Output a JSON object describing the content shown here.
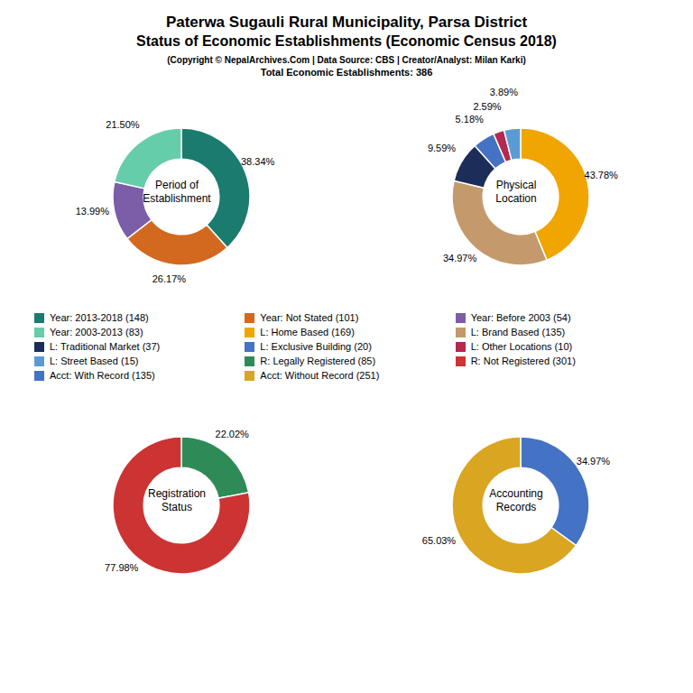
{
  "title": "Paterwa Sugauli Rural Municipality, Parsa District\nStatus of Economic Establishments (Economic Census 2018)",
  "subtitle": "(Copyright © NepalArchives.Com | Data Source: CBS | Creator/Analyst: Milan Karki)",
  "annotations": [
    "Total Economic Establishments: 386"
  ],
  "chart_data": [
    {
      "type": "pie",
      "title": "Period of\nEstablishment",
      "categories": [
        "Year: 2013-2018 (148)",
        "Year: Not Stated (101)",
        "Year: Before 2003 (54)",
        "Year: 2003-2013 (83)"
      ],
      "values": [
        38.34,
        26.17,
        13.99,
        21.5
      ],
      "value_labels": [
        "38.34%",
        "26.17%",
        "13.99%",
        "21.50%"
      ],
      "colors": [
        "#1B7B6E",
        "#D2691E",
        "#7B5EA7",
        "#66CDAA"
      ],
      "data_labels": true
    },
    {
      "type": "pie",
      "title": "Physical\nLocation",
      "categories": [
        "L: Home Based (169)",
        "L: Brand Based (135)",
        "L: Traditional Market (37)",
        "L: Exclusive Building (20)",
        "L: Other Locations (10)",
        "L: Street Based (15)"
      ],
      "values": [
        43.78,
        34.97,
        9.59,
        5.18,
        2.59,
        3.89
      ],
      "value_labels": [
        "43.78%",
        "34.97%",
        "9.59%",
        "5.18%",
        "2.59%",
        "3.89%"
      ],
      "colors": [
        "#F0A500",
        "#C49A6C",
        "#1C2D5A",
        "#4472C4",
        "#B5294E",
        "#5B9BD5"
      ],
      "data_labels": true
    },
    {
      "type": "pie",
      "title": "Registration\nStatus",
      "categories": [
        "R: Legally Registered (85)",
        "R: Not Registered (301)"
      ],
      "values": [
        22.02,
        77.98
      ],
      "value_labels": [
        "22.02%",
        "77.98%"
      ],
      "colors": [
        "#2E8B57",
        "#CC3333"
      ],
      "data_labels": true
    },
    {
      "type": "pie",
      "title": "Accounting\nRecords",
      "categories": [
        "Acct: With Record (135)",
        "Acct: Without Record (251)"
      ],
      "values": [
        34.97,
        65.03
      ],
      "value_labels": [
        "34.97%",
        "65.03%"
      ],
      "colors": [
        "#4472C4",
        "#DAA520"
      ],
      "data_labels": true
    }
  ]
}
